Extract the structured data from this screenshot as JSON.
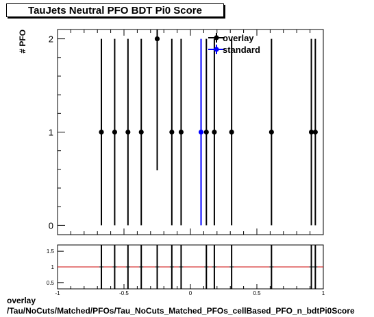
{
  "title": "TauJets Neutral PFO BDT Pi0 Score",
  "footer": {
    "line1": "overlay",
    "line2": "/Tau/NoCuts/Matched/PFOs/Tau_NoCuts_Matched_PFOs_cellBased_PFO_n_bdtPi0Score"
  },
  "colors": {
    "overlay": "#000000",
    "standard": "#0000ff",
    "ratio_line": "#cc0000"
  },
  "chart_data": [
    {
      "type": "scatter",
      "ylabel": "# PFO",
      "xlim": [
        -1,
        1
      ],
      "ylim": [
        -0.1,
        2.1
      ],
      "yticks": [
        0,
        1,
        2
      ],
      "legend": "top-right",
      "series": [
        {
          "name": "overlay",
          "x": [
            -0.67,
            -0.57,
            -0.47,
            -0.37,
            -0.25,
            -0.14,
            -0.07,
            0.12,
            0.18,
            0.31,
            0.61,
            0.91,
            0.94
          ],
          "y": [
            1,
            1,
            1,
            1,
            2,
            1,
            1,
            1,
            1,
            1,
            1,
            1,
            1
          ],
          "yerr": [
            1,
            1,
            1,
            1,
            1.41,
            1,
            1,
            1,
            1,
            1,
            1,
            1,
            1
          ]
        },
        {
          "name": "standard",
          "x": [
            0.08
          ],
          "y": [
            1
          ],
          "yerr": [
            1
          ]
        }
      ]
    },
    {
      "type": "scatter",
      "name": "ratio",
      "xlim": [
        -1,
        1
      ],
      "ylim": [
        0.3,
        1.7
      ],
      "xticks": [
        -1,
        -0.5,
        0,
        0.5,
        1
      ],
      "xticklabels": [
        "-1",
        "-0.5",
        "0",
        "0.5",
        "1"
      ],
      "yticks": [
        0.5,
        1,
        1.5
      ],
      "yticklabels": [
        "0.5",
        "1",
        "1.5"
      ],
      "reference_line": 1,
      "series": [
        {
          "x": [
            -0.67,
            -0.57,
            -0.47,
            -0.37,
            -0.25,
            -0.14,
            -0.07,
            0.12,
            0.18,
            0.31,
            0.61,
            0.91,
            0.94
          ],
          "y": [
            1,
            1,
            1,
            1,
            1,
            1,
            1,
            1,
            1,
            1,
            1,
            1,
            1
          ]
        }
      ]
    }
  ]
}
